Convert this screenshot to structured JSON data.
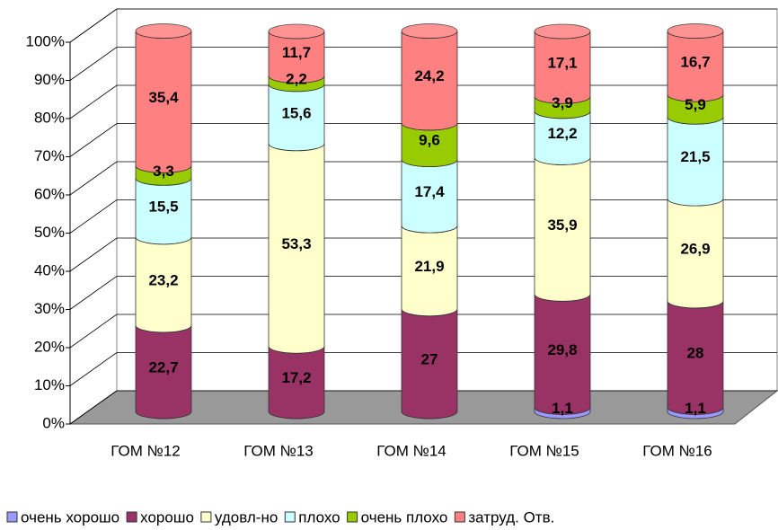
{
  "chart_data": {
    "type": "stacked-cylinder",
    "categories": [
      "ГОМ №12",
      "ГОМ №13",
      "ГОМ №14",
      "ГОМ №15",
      "ГОМ №16"
    ],
    "series": [
      {
        "name": "очень хорошо",
        "color": "#9999ff",
        "values": [
          0,
          0,
          0,
          1.1,
          1.1
        ],
        "value_labels": [
          null,
          null,
          null,
          "1,1",
          "1,1"
        ]
      },
      {
        "name": "хорошо",
        "color": "#993366",
        "values": [
          22.7,
          17.2,
          27,
          29.8,
          28
        ],
        "value_labels": [
          "22,7",
          "17,2",
          "27",
          "29,8",
          "28"
        ]
      },
      {
        "name": "удовл-но",
        "color": "#ffffcc",
        "values": [
          23.2,
          53.3,
          21.9,
          35.9,
          26.9
        ],
        "value_labels": [
          "23,2",
          "53,3",
          "21,9",
          "35,9",
          "26,9"
        ]
      },
      {
        "name": "плохо",
        "color": "#ccffff",
        "values": [
          15.5,
          15.6,
          17.4,
          12.2,
          21.5
        ],
        "value_labels": [
          "15,5",
          "15,6",
          "17,4",
          "12,2",
          "21,5"
        ]
      },
      {
        "name": "очень плохо",
        "color": "#99cc00",
        "values": [
          3.3,
          2.2,
          9.6,
          3.9,
          5.9
        ],
        "value_labels": [
          "3,3",
          "2,2",
          "9,6",
          "3,9",
          "5,9"
        ]
      },
      {
        "name": "затруд. Отв.",
        "color": "#ff8080",
        "values": [
          35.4,
          11.7,
          24.2,
          17.1,
          16.7
        ],
        "value_labels": [
          "35,4",
          "11,7",
          "24,2",
          "17,1",
          "16,7"
        ]
      }
    ],
    "ylim": [
      0,
      100
    ],
    "yticks": [
      {
        "value": 0,
        "label": "0%"
      },
      {
        "value": 10,
        "label": "10%"
      },
      {
        "value": 20,
        "label": "20%"
      },
      {
        "value": 30,
        "label": "30%"
      },
      {
        "value": 40,
        "label": "40%"
      },
      {
        "value": 50,
        "label": "50%"
      },
      {
        "value": 60,
        "label": "60%"
      },
      {
        "value": 70,
        "label": "70%"
      },
      {
        "value": 80,
        "label": "80%"
      },
      {
        "value": 90,
        "label": "90%"
      },
      {
        "value": 100,
        "label": "100%"
      }
    ],
    "grid": true,
    "legend": "bottom"
  }
}
